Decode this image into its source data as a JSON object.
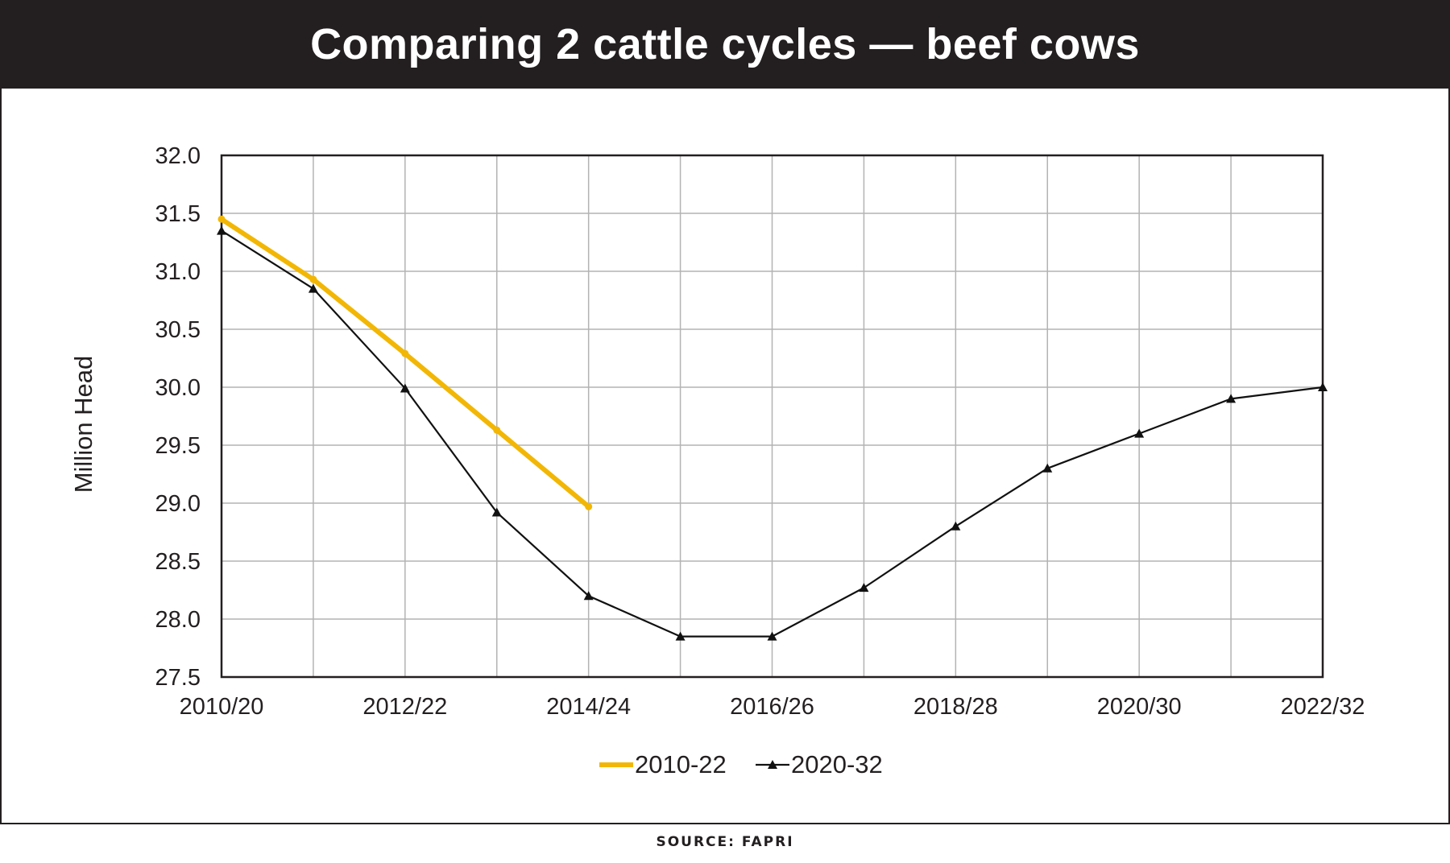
{
  "header": {
    "title": "Comparing 2 cattle cycles — beef cows"
  },
  "footer": {
    "source": "SOURCE: FAPRI"
  },
  "colors": {
    "title_bar": "#231f20",
    "series_2010_22": "#f2b705",
    "series_2020_32": "#111111",
    "grid": "#b3b3b3"
  },
  "chart_data": {
    "type": "line",
    "title": "",
    "xlabel": "",
    "ylabel": "Million Head",
    "x": [
      "2010/20",
      "2011/21",
      "2012/22",
      "2013/23",
      "2014/24",
      "2015/25",
      "2016/26",
      "2017/27",
      "2018/28",
      "2019/29",
      "2020/30",
      "2021/31",
      "2022/32"
    ],
    "x_tick_labels": [
      "2010/20",
      "2012/22",
      "2014/24",
      "2016/26",
      "2018/28",
      "2020/30",
      "2022/32"
    ],
    "ylim": [
      27.5,
      32.0
    ],
    "y_ticks": [
      "32.0",
      "31.5",
      "31.0",
      "30.5",
      "30.0",
      "29.5",
      "29.0",
      "28.5",
      "28.0",
      "27.5"
    ],
    "grid": true,
    "legend_position": "bottom-center",
    "series": [
      {
        "name": "2010-22",
        "color": "#f2b705",
        "marker": "none",
        "values": [
          31.45,
          30.93,
          30.29,
          29.63,
          28.97,
          null,
          null,
          null,
          null,
          null,
          null,
          null,
          null
        ]
      },
      {
        "name": "2020-32",
        "color": "#111111",
        "marker": "triangle",
        "values": [
          31.35,
          30.85,
          29.99,
          28.92,
          28.2,
          27.85,
          27.85,
          28.27,
          28.8,
          29.3,
          29.6,
          29.9,
          30.0
        ]
      }
    ]
  }
}
